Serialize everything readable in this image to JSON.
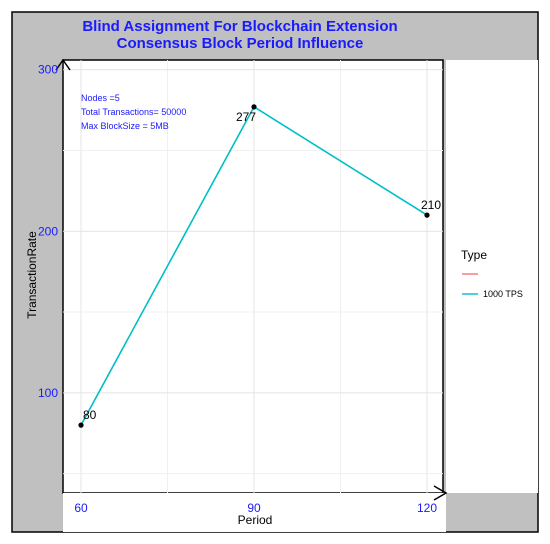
{
  "chart_data": {
    "type": "line",
    "title": [
      "Blind Assignment For Blockchain Extension",
      "Consensus Block Period Influence"
    ],
    "xlabel": "Period",
    "ylabel": "TransactionRate",
    "x_ticks": [
      60,
      90,
      120
    ],
    "y_ticks": [
      100,
      200,
      300
    ],
    "xlim": [
      60,
      120
    ],
    "ylim": [
      38,
      306
    ],
    "grid": true,
    "annotations": [
      "Nodes =5",
      "Total Transactions= 50000",
      "Max BlockSize = 5MB"
    ],
    "legend": {
      "title": "Type",
      "position": "right",
      "entries": [
        {
          "label": "",
          "color": "#f8766d"
        },
        {
          "label": "1000 TPS",
          "color": "#00bfc4"
        }
      ]
    },
    "series": [
      {
        "name": "1000 TPS",
        "color": "#00bfc4",
        "x": [
          60,
          90,
          120
        ],
        "y": [
          80,
          277,
          210
        ],
        "labels": [
          "80",
          "277",
          "210"
        ]
      }
    ]
  },
  "colors": {
    "frame_background": "#c0c0c0",
    "panel_background": "#ffffff",
    "title_text": "#1a1aff",
    "tick_text": "#1a1aff",
    "point": "#000000"
  }
}
